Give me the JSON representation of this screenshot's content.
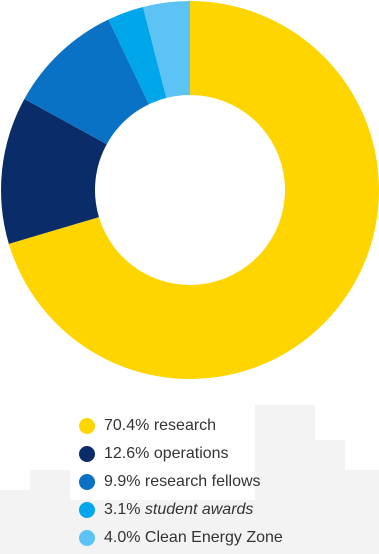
{
  "chart_data": {
    "type": "donut",
    "categories": [
      "research",
      "operations",
      "research fellows",
      "student awards",
      "Clean Energy Zone"
    ],
    "values": [
      70.4,
      12.6,
      9.9,
      3.1,
      4.0
    ],
    "value_labels": [
      "70.4%",
      "12.6%",
      "9.9%",
      "3.1%",
      "4.0%"
    ],
    "colors": [
      "#ffd500",
      "#0a2d6a",
      "#0a72c4",
      "#00a6ea",
      "#5cc3f4"
    ]
  }
}
